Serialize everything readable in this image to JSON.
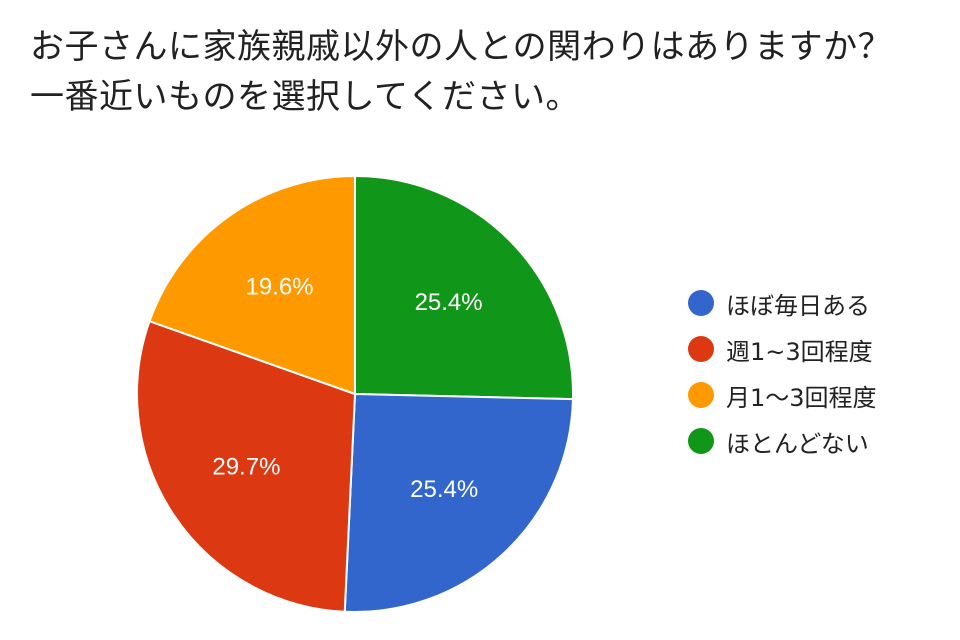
{
  "chart_data": {
    "type": "pie",
    "title_lines": [
      "お子さんに家族親戚以外の人との関わりはありますか？",
      "一番近いものを選択してください。"
    ],
    "start": "top",
    "direction": "clockwise",
    "legend_position": "right",
    "slices": [
      {
        "name": "ほぼ毎日ある",
        "value": 25.4,
        "label": "25.4%",
        "color": "#3366cc"
      },
      {
        "name": "週1~3回程度",
        "value": 29.7,
        "label": "29.7%",
        "color": "#dc3912"
      },
      {
        "name": "月1～3回程度",
        "value": 19.6,
        "label": "19.6%",
        "color": "#ff9900"
      },
      {
        "name": "ほとんどない",
        "value": 25.4,
        "label": "25.4%",
        "color": "#109618"
      }
    ],
    "order_clockwise_from_top": [
      3,
      0,
      1,
      2
    ]
  }
}
